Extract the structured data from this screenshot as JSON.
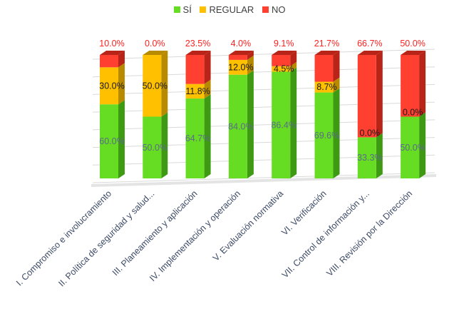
{
  "chart_data": {
    "type": "bar",
    "stacked": true,
    "three_d": true,
    "title": "",
    "xlabel": "",
    "ylabel": "",
    "ylim": [
      0,
      100
    ],
    "grid": true,
    "legend_position": "top",
    "categories": [
      "I. Compromiso e involucramiento",
      "II. Política de seguridad y salud...",
      "III. Planeamiento y aplicación",
      "IV. Implementación y operación",
      "V. Evaluación normativa",
      "VI. Verificación",
      "VII. Control de información y...",
      "VIII. Revisión por la Dirección"
    ],
    "series": [
      {
        "name": "SÍ",
        "color": "#66DD22",
        "side_color": "#3E9A12",
        "label_color": "#5A6A8A",
        "values": [
          60.0,
          50.0,
          64.7,
          84.0,
          86.4,
          69.6,
          33.3,
          50.0
        ],
        "labels": [
          "60.0%",
          "50.0%",
          "64.7%",
          "84.0%",
          "86.4%",
          "69.6%",
          "33.3%",
          "50.0%"
        ]
      },
      {
        "name": "REGULAR",
        "color": "#FFC000",
        "side_color": "#B88A00",
        "label_color": "#1a1a1a",
        "values": [
          30.0,
          50.0,
          11.8,
          12.0,
          4.5,
          8.7,
          0.0,
          0.0
        ],
        "labels": [
          "30.0%",
          "50.0%",
          "11.8%",
          "12.0%",
          "4.5%",
          "8.7%",
          "0.0%",
          "0.0%"
        ]
      },
      {
        "name": "NO",
        "color": "#FF4030",
        "side_color": "#B82418",
        "label_color": "#FF2020",
        "values": [
          10.0,
          0.0,
          23.5,
          4.0,
          9.1,
          21.7,
          66.7,
          50.0
        ],
        "labels": [
          "10.0%",
          "0.0%",
          "23.5%",
          "4.0%",
          "9.1%",
          "21.7%",
          "66.7%",
          "50.0%"
        ]
      }
    ]
  }
}
